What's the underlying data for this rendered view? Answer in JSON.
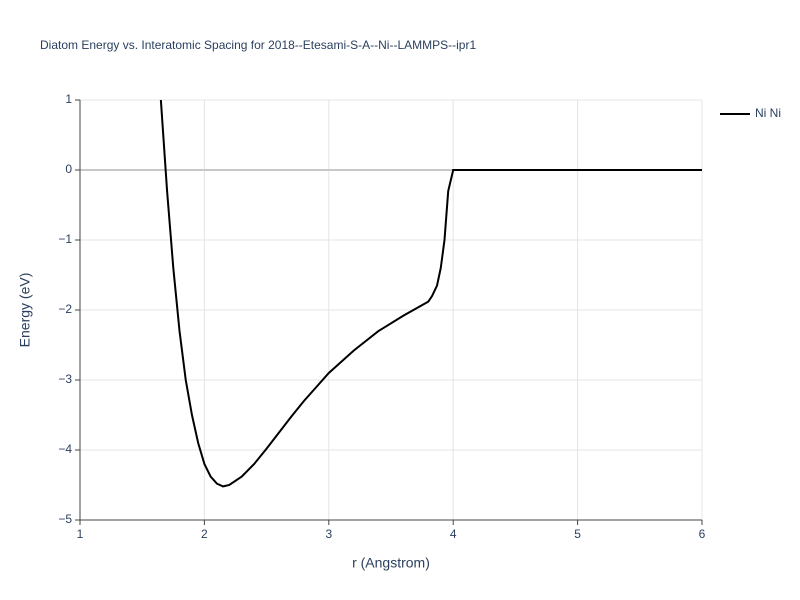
{
  "chart_data": {
    "type": "line",
    "title": "Diatom Energy vs. Interatomic Spacing for 2018--Etesami-S-A--Ni--LAMMPS--ipr1",
    "x_label": "r (Angstrom)",
    "y_label": "Energy (eV)",
    "x": [
      1.65,
      1.7,
      1.75,
      1.8,
      1.85,
      1.9,
      1.95,
      2.0,
      2.05,
      2.1,
      2.15,
      2.2,
      2.3,
      2.4,
      2.5,
      2.6,
      2.7,
      2.8,
      2.9,
      3.0,
      3.2,
      3.4,
      3.6,
      3.8,
      3.83,
      3.87,
      3.9,
      3.93,
      3.96,
      4.0,
      4.5,
      5.0,
      5.5,
      6.0
    ],
    "series": [
      {
        "name": "Ni Ni",
        "color": "#000000",
        "values": [
          1.0,
          -0.3,
          -1.4,
          -2.3,
          -3.0,
          -3.5,
          -3.9,
          -4.2,
          -4.38,
          -4.48,
          -4.52,
          -4.5,
          -4.38,
          -4.2,
          -3.98,
          -3.75,
          -3.52,
          -3.3,
          -3.1,
          -2.9,
          -2.58,
          -2.3,
          -2.08,
          -1.88,
          -1.8,
          -1.65,
          -1.4,
          -1.0,
          -0.3,
          0,
          0,
          0,
          0,
          0
        ]
      }
    ],
    "xlim": [
      1,
      6
    ],
    "xticks": [
      1,
      2,
      3,
      4,
      5,
      6
    ],
    "ylim": [
      -5,
      1
    ],
    "yticks": [
      {
        "value": -5,
        "label": "−5"
      },
      {
        "value": -4,
        "label": "−4"
      },
      {
        "value": -3,
        "label": "−3"
      },
      {
        "value": -2,
        "label": "−2"
      },
      {
        "value": -1,
        "label": "−1"
      },
      0,
      1
    ],
    "grid": true,
    "legend": "top-right"
  }
}
